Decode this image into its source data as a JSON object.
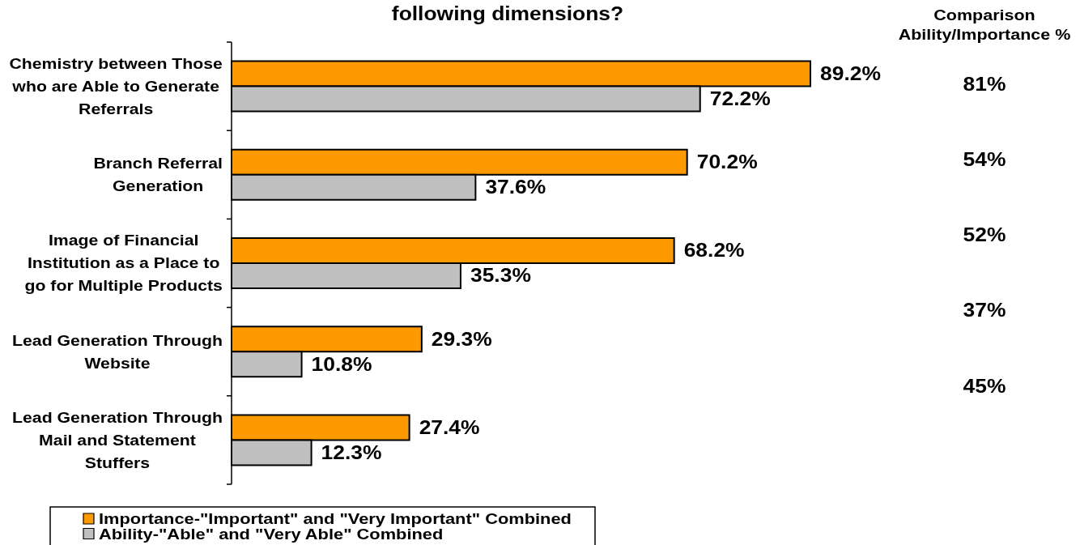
{
  "chart_data": {
    "type": "bar",
    "orientation": "horizontal",
    "title": "following dimensions?",
    "categories": [
      "Chemistry between Those who are Able to Generate Referrals",
      "Branch Referral Generation",
      "Image of Financial Institution as a Place to go for Multiple Products",
      "Lead Generation Through Website",
      "Lead Generation Through Mail and Statement Stuffers"
    ],
    "series": [
      {
        "name": "Importance-\"Important\" and \"Very Important\" Combined",
        "color": "#ff9900",
        "values": [
          89.2,
          70.2,
          68.2,
          29.3,
          27.4
        ],
        "value_labels": [
          "89.2%",
          "70.2%",
          "68.2%",
          "29.3%",
          "27.4%"
        ]
      },
      {
        "name": "Ability-\"Able\" and \"Very Able\" Combined",
        "color": "#c0c0c0",
        "values": [
          72.2,
          37.6,
          35.3,
          10.8,
          12.3
        ],
        "value_labels": [
          "72.2%",
          "37.6%",
          "35.3%",
          "10.8%",
          "12.3%"
        ]
      }
    ],
    "tick_labels": "y",
    "legend": "bottom",
    "annotations": [
      "Comparison Ability/Importance %",
      "81%",
      "54%",
      "52%",
      "37%",
      "45%"
    ]
  }
}
